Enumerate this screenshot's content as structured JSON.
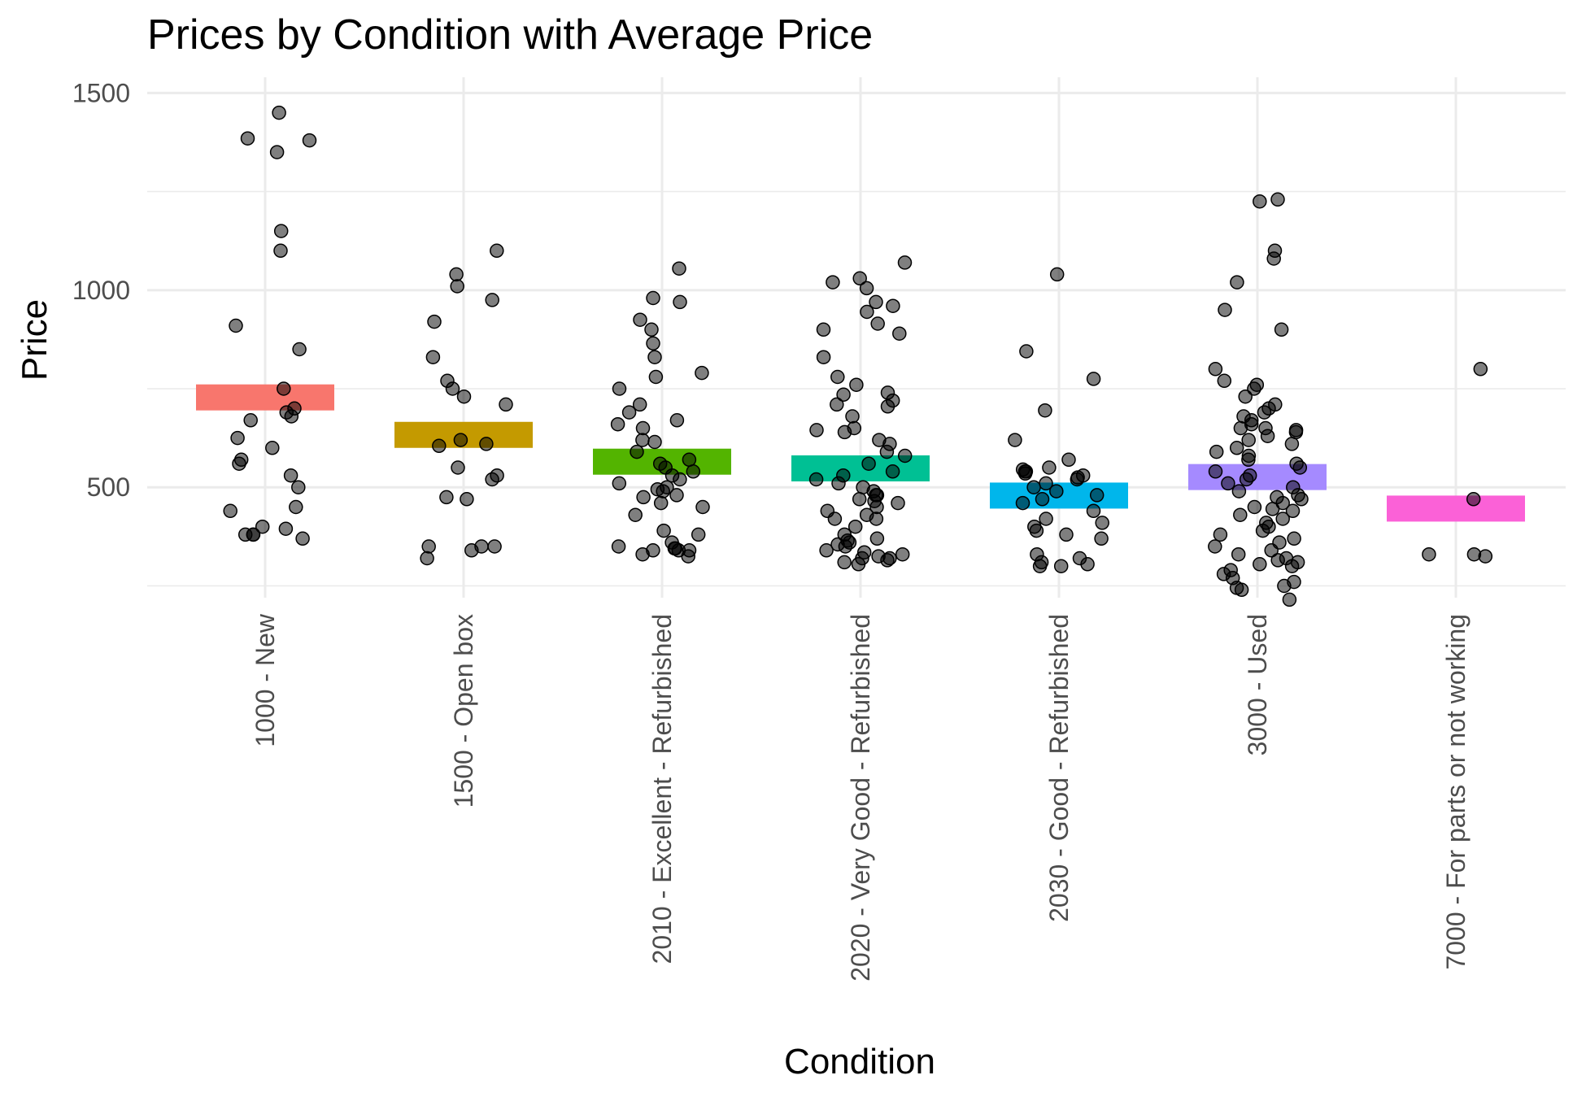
{
  "chart_data": {
    "type": "scatter",
    "title": "Prices by Condition with Average Price",
    "xlabel": "Condition",
    "ylabel": "Price",
    "ylim": [
      220,
      1540
    ],
    "yticks": [
      500,
      1000,
      1500
    ],
    "grid": true,
    "legend": "none",
    "categories": [
      "1000 - New",
      "1500 - Open box",
      "2010 - Excellent - Refurbished",
      "2020 - Very Good - Refurbished",
      "2030 - Good - Refurbished",
      "3000 - Used",
      "7000 - For parts or not working"
    ],
    "colors": [
      "#F8766D",
      "#C49A00",
      "#53B400",
      "#00C094",
      "#00B6EB",
      "#A58AFF",
      "#FB61D7"
    ],
    "averages": [
      728,
      633,
      565,
      548,
      479,
      526,
      446
    ],
    "points": [
      [
        1450,
        1385,
        1350,
        1380,
        1150,
        1100,
        910,
        850,
        750,
        700,
        690,
        670,
        680,
        625,
        600,
        570,
        560,
        530,
        500,
        450,
        440,
        400,
        395,
        380,
        380,
        380,
        370
      ],
      [
        1100,
        1040,
        1010,
        975,
        920,
        830,
        770,
        750,
        730,
        710,
        620,
        610,
        605,
        550,
        530,
        520,
        475,
        470,
        350,
        350,
        350,
        340,
        320
      ],
      [
        1055,
        980,
        970,
        925,
        900,
        865,
        830,
        790,
        780,
        750,
        710,
        690,
        670,
        660,
        650,
        620,
        615,
        590,
        570,
        560,
        550,
        540,
        530,
        520,
        510,
        500,
        495,
        490,
        480,
        475,
        460,
        450,
        430,
        390,
        380,
        360,
        350,
        345,
        345,
        340,
        340,
        340,
        330,
        325
      ],
      [
        1070,
        1030,
        1020,
        1005,
        970,
        960,
        945,
        915,
        900,
        890,
        830,
        780,
        760,
        740,
        735,
        720,
        710,
        705,
        680,
        650,
        645,
        640,
        620,
        610,
        590,
        580,
        560,
        540,
        530,
        520,
        510,
        500,
        490,
        480,
        480,
        470,
        465,
        460,
        450,
        440,
        430,
        420,
        420,
        400,
        380,
        370,
        365,
        360,
        355,
        350,
        340,
        335,
        330,
        325,
        320,
        320,
        315,
        310,
        305
      ],
      [
        1040,
        845,
        775,
        695,
        620,
        570,
        550,
        545,
        540,
        540,
        535,
        530,
        525,
        520,
        510,
        500,
        490,
        480,
        470,
        460,
        440,
        420,
        410,
        400,
        390,
        380,
        370,
        330,
        320,
        310,
        305,
        300,
        300
      ],
      [
        1230,
        1225,
        1100,
        1080,
        1020,
        950,
        900,
        800,
        770,
        760,
        750,
        730,
        710,
        700,
        690,
        680,
        670,
        660,
        650,
        650,
        645,
        640,
        630,
        620,
        610,
        600,
        590,
        580,
        570,
        560,
        550,
        540,
        530,
        520,
        510,
        500,
        490,
        480,
        475,
        470,
        460,
        450,
        445,
        440,
        430,
        420,
        410,
        400,
        390,
        380,
        370,
        360,
        350,
        340,
        330,
        320,
        315,
        310,
        305,
        300,
        290,
        280,
        270,
        260,
        250,
        245,
        240,
        215
      ],
      [
        800,
        470,
        330,
        330,
        325
      ]
    ]
  }
}
